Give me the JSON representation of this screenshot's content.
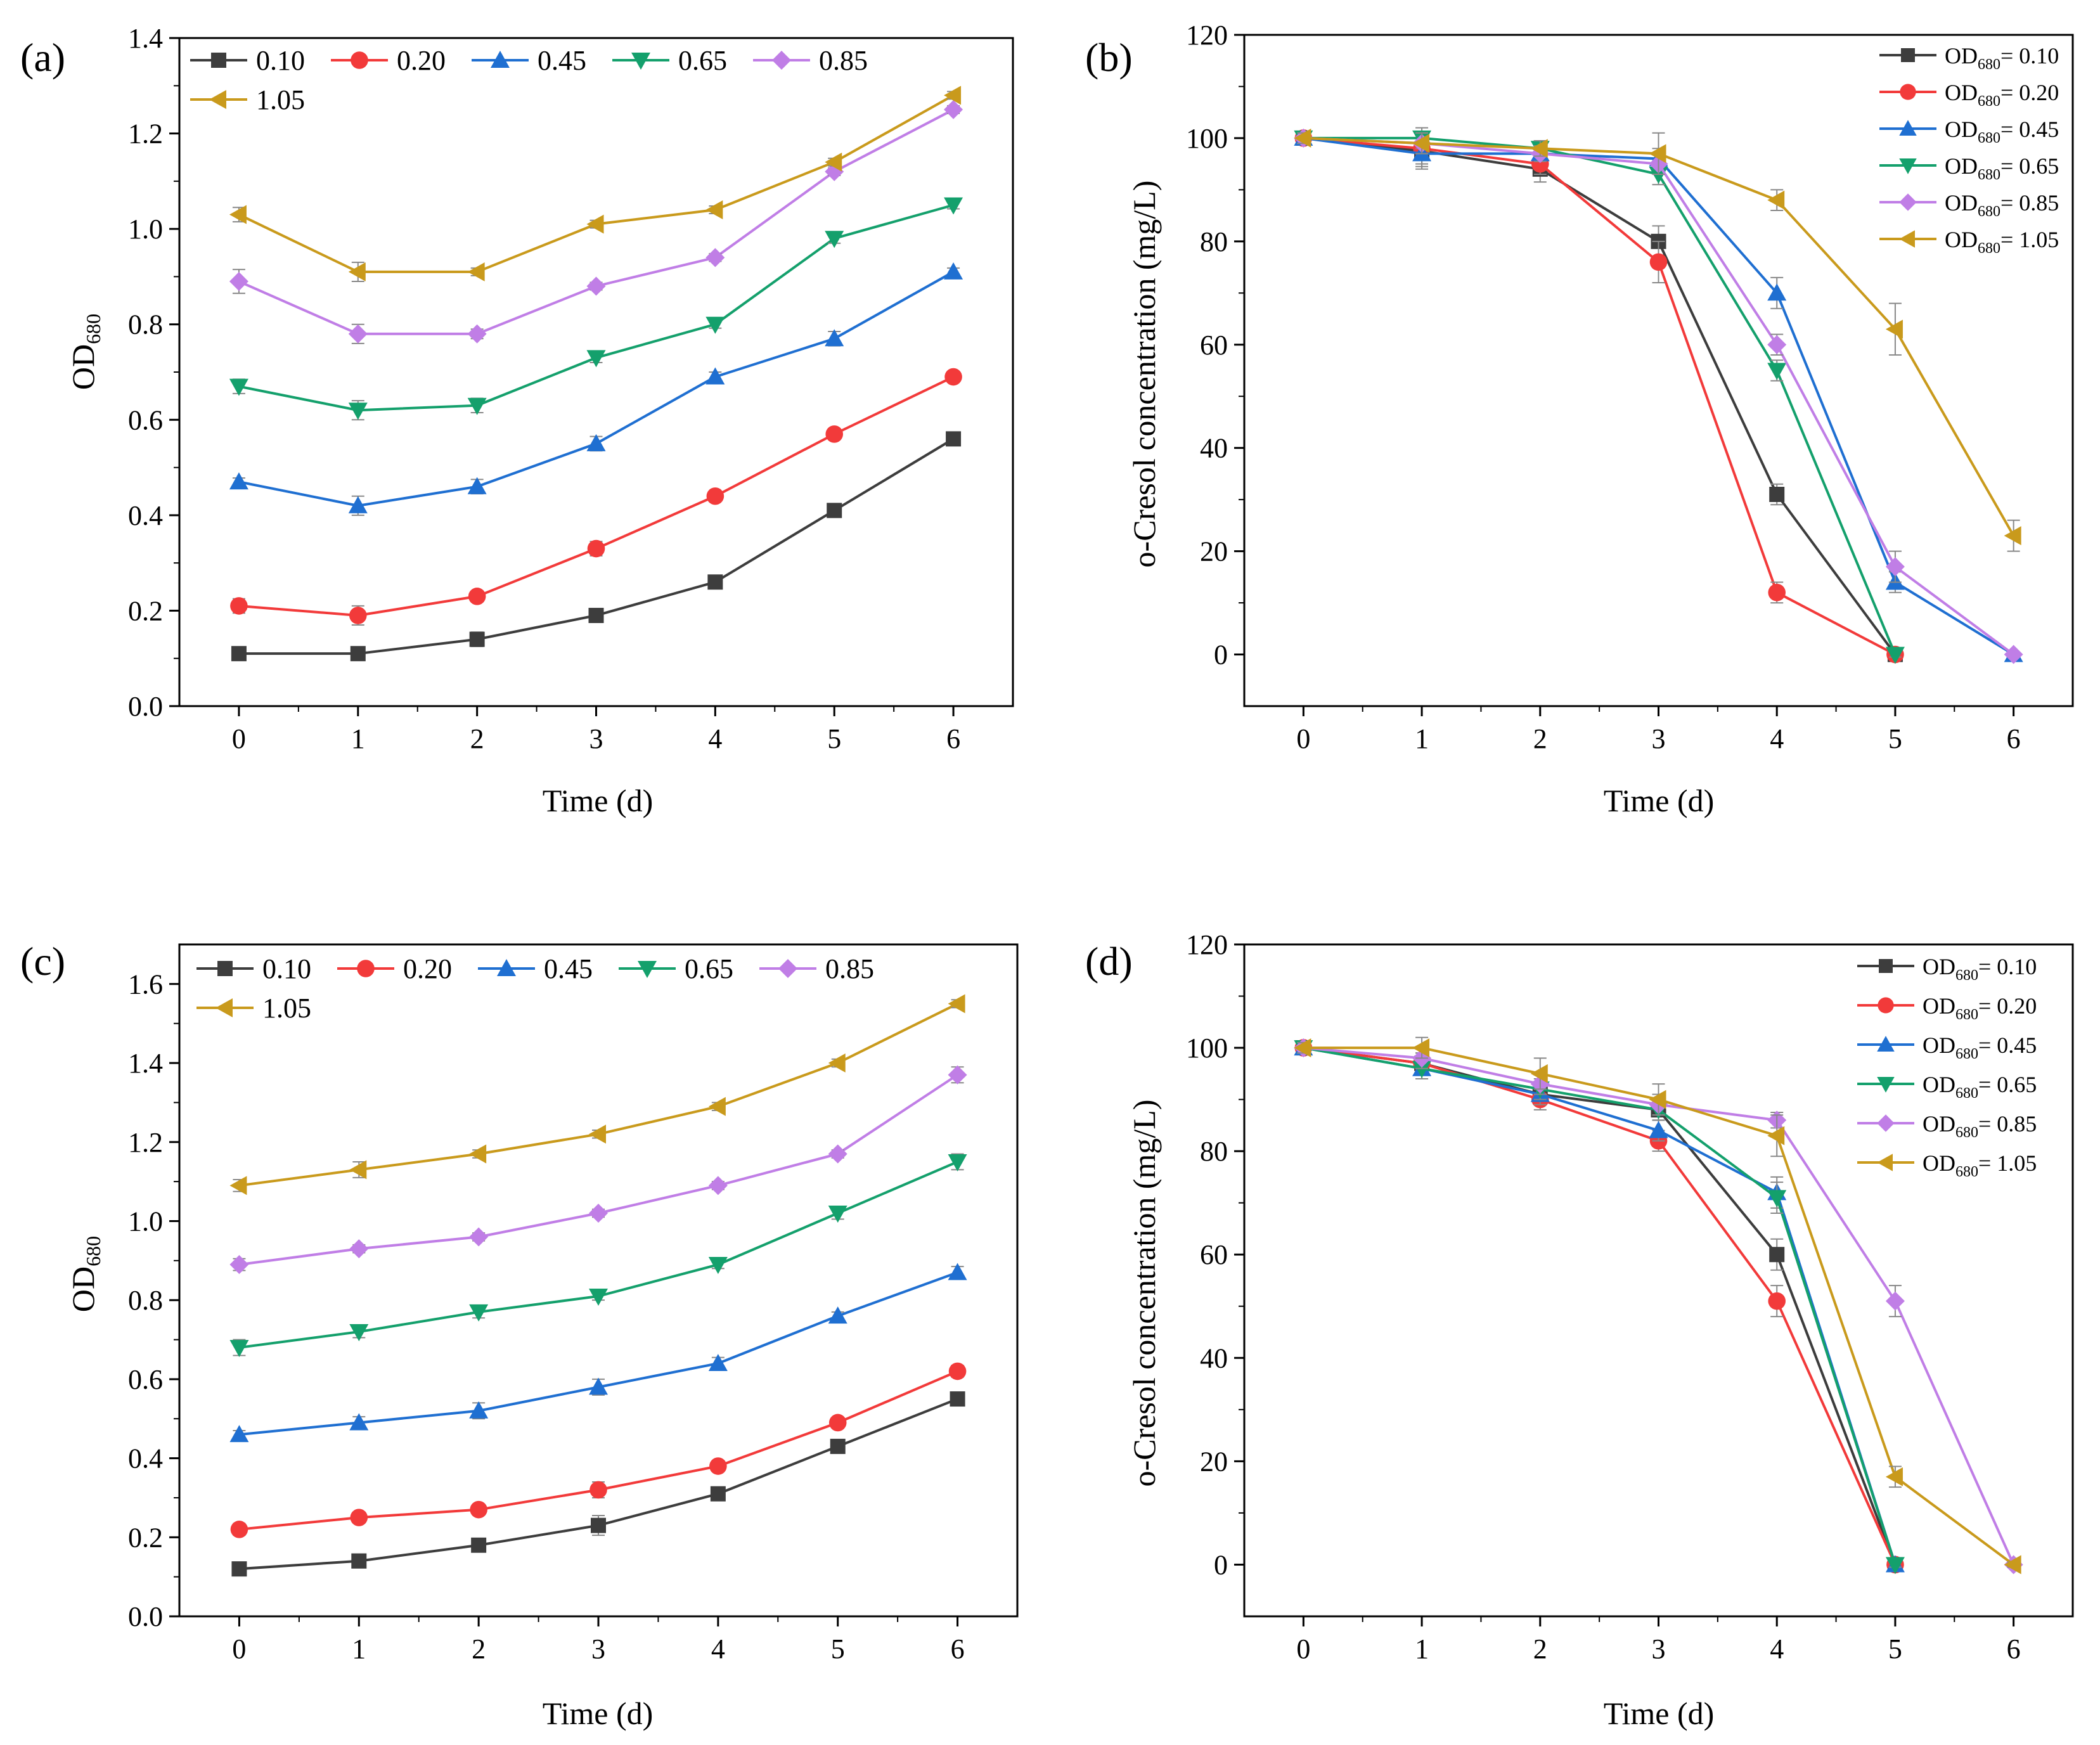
{
  "figure": {
    "colors": {
      "s1": "#3d3d3d",
      "s2": "#f23a3a",
      "s3": "#1f6fd1",
      "s4": "#14a06c",
      "s5": "#c07ee6",
      "s6": "#c99a1c"
    }
  },
  "chart_data": [
    {
      "panel": "(a)",
      "type": "line",
      "xlabel": "Time (d)",
      "ylabel": "OD",
      "ylabel_sub": "680",
      "xlim": [
        -0.5,
        6.5
      ],
      "ylim": [
        0.0,
        1.4
      ],
      "x_ticks": [
        0,
        1,
        2,
        3,
        4,
        5,
        6
      ],
      "y_ticks": [
        0.0,
        0.2,
        0.4,
        0.6,
        0.8,
        1.0,
        1.2,
        1.4
      ],
      "y_tick_labels": [
        "0.0",
        "0.2",
        "0.4",
        "0.6",
        "0.8",
        "1.0",
        "1.2",
        "1.4"
      ],
      "legend_style": "inline",
      "x": [
        0,
        1,
        2,
        3,
        4,
        5,
        6
      ],
      "series": [
        {
          "name": "0.10",
          "marker": "square",
          "color": "s1",
          "values": [
            0.11,
            0.11,
            0.14,
            0.19,
            0.26,
            0.41,
            0.56
          ],
          "errors": [
            0.005,
            0.005,
            0.015,
            0.008,
            0.008,
            0.008,
            0.008
          ]
        },
        {
          "name": "0.20",
          "marker": "circle",
          "color": "s2",
          "values": [
            0.21,
            0.19,
            0.23,
            0.33,
            0.44,
            0.57,
            0.69
          ],
          "errors": [
            0.015,
            0.02,
            0.01,
            0.015,
            0.01,
            0.008,
            0.008
          ]
        },
        {
          "name": "0.45",
          "marker": "triangle-up",
          "color": "s3",
          "values": [
            0.47,
            0.42,
            0.46,
            0.55,
            0.69,
            0.77,
            0.91
          ],
          "errors": [
            0.008,
            0.02,
            0.015,
            0.015,
            0.01,
            0.015,
            0.008
          ]
        },
        {
          "name": "0.65",
          "marker": "triangle-down",
          "color": "s4",
          "values": [
            0.67,
            0.62,
            0.63,
            0.73,
            0.8,
            0.98,
            1.05
          ],
          "errors": [
            0.015,
            0.02,
            0.015,
            0.01,
            0.008,
            0.01,
            0.008
          ]
        },
        {
          "name": "0.85",
          "marker": "diamond",
          "color": "s5",
          "values": [
            0.89,
            0.78,
            0.78,
            0.88,
            0.94,
            1.12,
            1.25
          ],
          "errors": [
            0.025,
            0.02,
            0.01,
            0.008,
            0.008,
            0.008,
            0.008
          ]
        },
        {
          "name": "1.05",
          "marker": "triangle-left",
          "color": "s6",
          "values": [
            1.03,
            0.91,
            0.91,
            1.01,
            1.04,
            1.14,
            1.28
          ],
          "errors": [
            0.015,
            0.02,
            0.008,
            0.008,
            0.008,
            0.008,
            0.008
          ]
        }
      ]
    },
    {
      "panel": "(b)",
      "type": "line",
      "xlabel": "Time (d)",
      "ylabel": "o-Cresol concentration (mg/L)",
      "xlim": [
        -0.5,
        6.5
      ],
      "ylim": [
        -10,
        120
      ],
      "x_ticks": [
        0,
        1,
        2,
        3,
        4,
        5,
        6
      ],
      "y_ticks": [
        0,
        20,
        40,
        60,
        80,
        100,
        120
      ],
      "y_tick_labels": [
        "0",
        "20",
        "40",
        "60",
        "80",
        "100",
        "120"
      ],
      "legend_style": "column",
      "legend_prefix": "OD",
      "legend_sub": "680",
      "x": [
        0,
        1,
        2,
        3,
        4,
        5,
        6
      ],
      "series": [
        {
          "name": "= 0.10",
          "marker": "square",
          "color": "s1",
          "values": [
            100,
            97.5,
            94,
            80,
            31,
            0,
            null
          ],
          "errors": [
            1,
            3,
            2.5,
            3,
            2,
            0.5,
            null
          ]
        },
        {
          "name": "= 0.20",
          "marker": "circle",
          "color": "s2",
          "values": [
            100,
            98,
            95,
            76,
            12,
            0,
            null
          ],
          "errors": [
            1,
            3,
            2,
            4,
            2,
            0.5,
            null
          ]
        },
        {
          "name": "= 0.45",
          "marker": "triangle-up",
          "color": "s3",
          "values": [
            100,
            97,
            97,
            96,
            70,
            14,
            0
          ],
          "errors": [
            1,
            3,
            1.5,
            2,
            3,
            2,
            0.5
          ]
        },
        {
          "name": "= 0.65",
          "marker": "triangle-down",
          "color": "s4",
          "values": [
            100,
            100,
            98,
            93,
            55,
            0,
            null
          ],
          "errors": [
            1,
            2,
            1.5,
            2,
            2,
            0.5,
            null
          ]
        },
        {
          "name": "= 0.85",
          "marker": "diamond",
          "color": "s5",
          "values": [
            100,
            99,
            97,
            95,
            60,
            17,
            0
          ],
          "errors": [
            1,
            2,
            1.5,
            2,
            2,
            3,
            0.5
          ]
        },
        {
          "name": "= 1.05",
          "marker": "triangle-left",
          "color": "s6",
          "values": [
            100,
            99,
            98,
            97,
            88,
            63,
            23
          ],
          "errors": [
            1,
            2,
            1.5,
            4,
            2,
            5,
            3
          ]
        }
      ]
    },
    {
      "panel": "(c)",
      "type": "line",
      "xlabel": "Time (d)",
      "ylabel": "OD",
      "ylabel_sub": "680",
      "xlim": [
        -0.5,
        6.5
      ],
      "ylim": [
        0.0,
        1.7
      ],
      "x_ticks": [
        0,
        1,
        2,
        3,
        4,
        5,
        6
      ],
      "y_ticks": [
        0.0,
        0.2,
        0.4,
        0.6,
        0.8,
        1.0,
        1.2,
        1.4,
        1.6
      ],
      "y_tick_labels": [
        "0.0",
        "0.2",
        "0.4",
        "0.6",
        "0.8",
        "1.0",
        "1.2",
        "1.4",
        "1.6"
      ],
      "legend_style": "inline",
      "x": [
        0,
        1,
        2,
        3,
        4,
        5,
        6
      ],
      "series": [
        {
          "name": "0.10",
          "marker": "square",
          "color": "s1",
          "values": [
            0.12,
            0.14,
            0.18,
            0.23,
            0.31,
            0.43,
            0.55
          ],
          "errors": [
            0.01,
            0.01,
            0.01,
            0.025,
            0.01,
            0.01,
            0.015
          ]
        },
        {
          "name": "0.20",
          "marker": "circle",
          "color": "s2",
          "values": [
            0.22,
            0.25,
            0.27,
            0.32,
            0.38,
            0.49,
            0.62
          ],
          "errors": [
            0.015,
            0.01,
            0.01,
            0.02,
            0.01,
            0.01,
            0.015
          ]
        },
        {
          "name": "0.45",
          "marker": "triangle-up",
          "color": "s3",
          "values": [
            0.46,
            0.49,
            0.52,
            0.58,
            0.64,
            0.76,
            0.87
          ],
          "errors": [
            0.01,
            0.015,
            0.02,
            0.02,
            0.015,
            0.01,
            0.015
          ]
        },
        {
          "name": "0.65",
          "marker": "triangle-down",
          "color": "s4",
          "values": [
            0.68,
            0.72,
            0.77,
            0.81,
            0.89,
            1.02,
            1.15
          ],
          "errors": [
            0.02,
            0.015,
            0.015,
            0.01,
            0.01,
            0.015,
            0.02
          ]
        },
        {
          "name": "0.85",
          "marker": "diamond",
          "color": "s5",
          "values": [
            0.89,
            0.93,
            0.96,
            1.02,
            1.09,
            1.17,
            1.37
          ],
          "errors": [
            0.015,
            0.01,
            0.01,
            0.01,
            0.01,
            0.01,
            0.02
          ]
        },
        {
          "name": "1.05",
          "marker": "triangle-left",
          "color": "s6",
          "values": [
            1.09,
            1.13,
            1.17,
            1.22,
            1.29,
            1.4,
            1.55
          ],
          "errors": [
            0.015,
            0.02,
            0.01,
            0.01,
            0.01,
            0.01,
            0.01
          ]
        }
      ]
    },
    {
      "panel": "(d)",
      "type": "line",
      "xlabel": "Time (d)",
      "ylabel": "o-Cresol concentration (mg/L)",
      "xlim": [
        -0.5,
        6.5
      ],
      "ylim": [
        -10,
        120
      ],
      "x_ticks": [
        0,
        1,
        2,
        3,
        4,
        5,
        6
      ],
      "y_ticks": [
        0,
        20,
        40,
        60,
        80,
        100,
        120
      ],
      "y_tick_labels": [
        "0",
        "20",
        "40",
        "60",
        "80",
        "100",
        "120"
      ],
      "legend_style": "column",
      "legend_prefix": "OD",
      "legend_sub": "680",
      "x": [
        0,
        1,
        2,
        3,
        4,
        5,
        6
      ],
      "series": [
        {
          "name": "= 0.10",
          "marker": "square",
          "color": "s1",
          "values": [
            100,
            97,
            91,
            88,
            60,
            0,
            null
          ],
          "errors": [
            1,
            2,
            2,
            2,
            3,
            0.5,
            null
          ]
        },
        {
          "name": "= 0.20",
          "marker": "circle",
          "color": "s2",
          "values": [
            100,
            97,
            90,
            82,
            51,
            0,
            null
          ],
          "errors": [
            1,
            2,
            2,
            2,
            3,
            0.5,
            null
          ]
        },
        {
          "name": "= 0.45",
          "marker": "triangle-up",
          "color": "s3",
          "values": [
            100,
            96,
            91,
            84,
            72,
            0,
            null
          ],
          "errors": [
            1,
            2,
            2,
            2,
            3,
            0.5,
            null
          ]
        },
        {
          "name": "= 0.65",
          "marker": "triangle-down",
          "color": "s4",
          "values": [
            100,
            96,
            92,
            88,
            71,
            0,
            null
          ],
          "errors": [
            1,
            2,
            2,
            2,
            3,
            0.5,
            null
          ]
        },
        {
          "name": "= 0.85",
          "marker": "diamond",
          "color": "s5",
          "values": [
            100,
            98,
            93,
            89,
            86,
            51,
            0
          ],
          "errors": [
            1,
            2,
            2,
            2,
            1.5,
            3,
            0.5
          ]
        },
        {
          "name": "= 1.05",
          "marker": "triangle-left",
          "color": "s6",
          "values": [
            100,
            100,
            95,
            90,
            83,
            17,
            0
          ],
          "errors": [
            1,
            2,
            3,
            3,
            4,
            2,
            0.5
          ]
        }
      ]
    }
  ]
}
